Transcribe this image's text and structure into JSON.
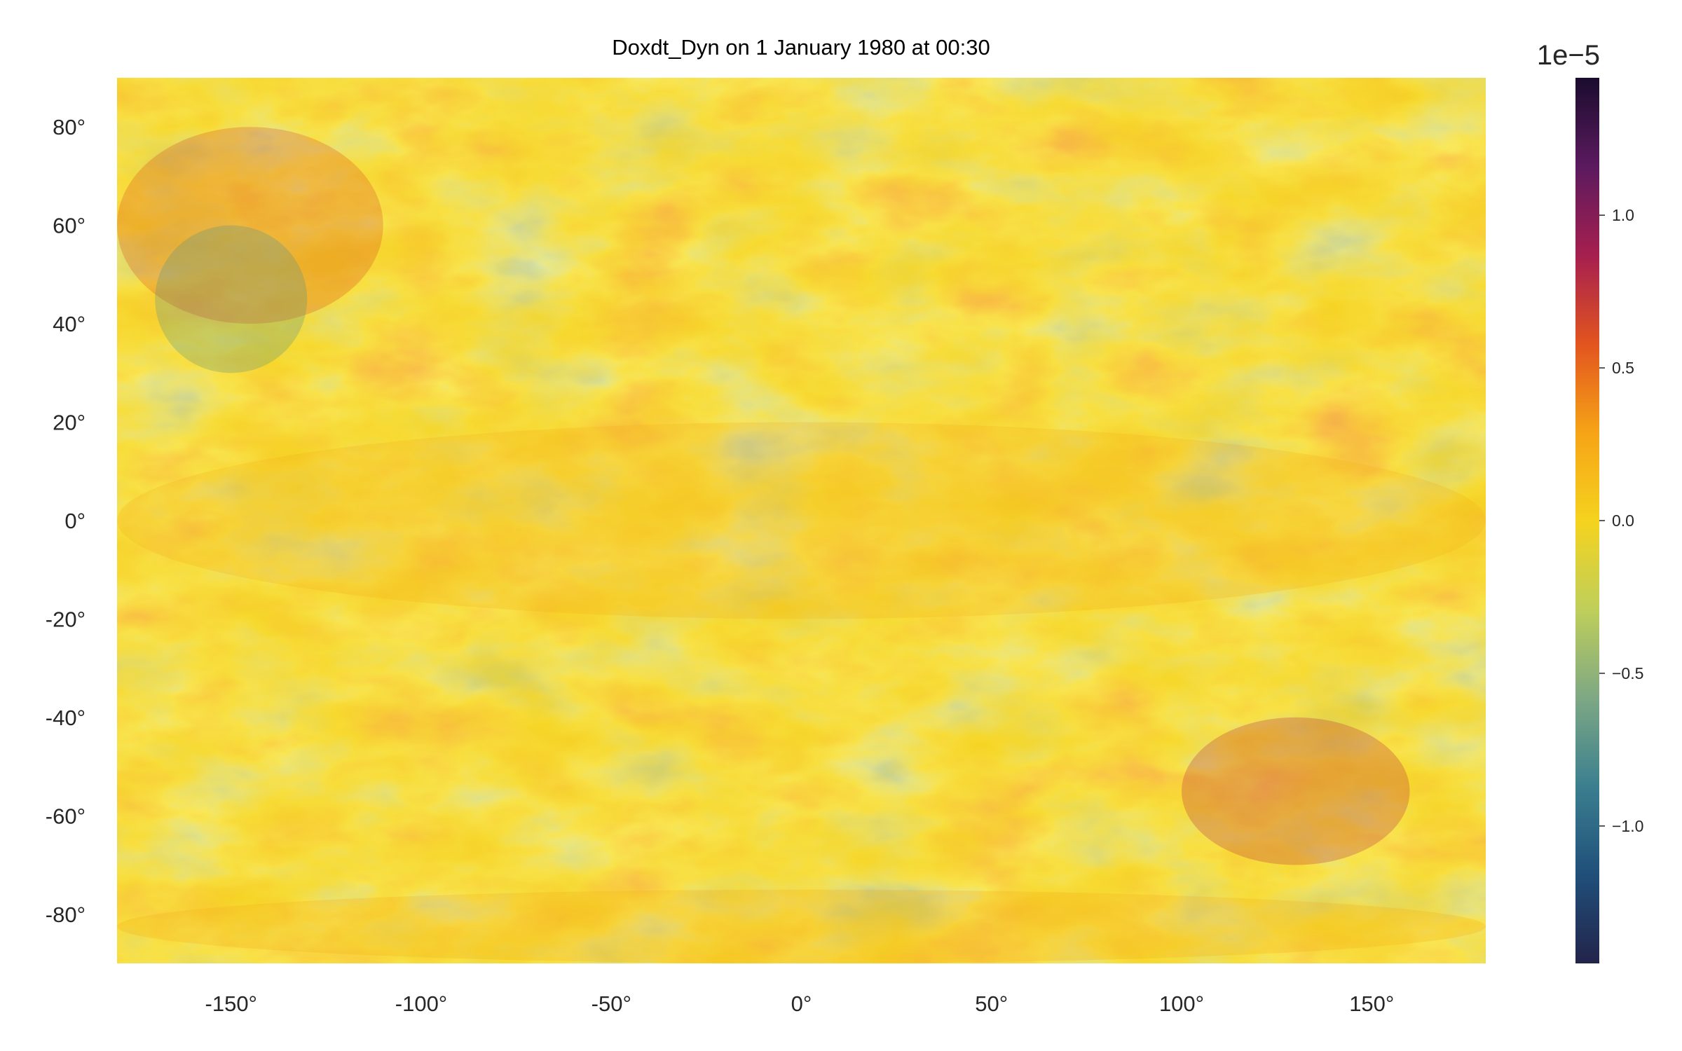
{
  "chart_data": {
    "type": "heatmap",
    "title": "Doxdt_Dyn on 1 January 1980 at 00:30",
    "xlabel": "",
    "ylabel": "",
    "xlim": [
      -180,
      180
    ],
    "ylim": [
      -90,
      90
    ],
    "x_ticks": [
      -150,
      -100,
      -50,
      0,
      50,
      100,
      150
    ],
    "x_tick_labels": [
      "-150°",
      "-100°",
      "-50°",
      "0°",
      "50°",
      "100°",
      "150°"
    ],
    "y_ticks": [
      80,
      60,
      40,
      20,
      0,
      -20,
      -40,
      -60,
      -80
    ],
    "y_tick_labels": [
      "80°",
      "60°",
      "40°",
      "20°",
      "0°",
      "-20°",
      "-40°",
      "-60°",
      "-80°"
    ],
    "grid": false,
    "colormap": [
      "#1a0c2e",
      "#5b1a5e",
      "#a51f4f",
      "#e2541f",
      "#f6a316",
      "#f5d31e",
      "#bfcf5a",
      "#7ea884",
      "#3b7f8f",
      "#204f7a",
      "#23244a"
    ],
    "colorbar": {
      "vmin": -1.45e-05,
      "vmax": 1.45e-05,
      "ticks": [
        1.0,
        0.5,
        0.0,
        -0.5,
        -1.0
      ],
      "tick_labels": [
        "1.0",
        "0.5",
        "0.0",
        "−0.5",
        "−1.0"
      ],
      "offset_label": "1e−5"
    },
    "field_description_regions": [
      {
        "lat": [
          40,
          80
        ],
        "lon": [
          -180,
          -110
        ],
        "tendency": "positive (orange/red streaks)"
      },
      {
        "lat": [
          30,
          60
        ],
        "lon": [
          -170,
          -130
        ],
        "tendency": "negative (teal)"
      },
      {
        "lat": [
          -20,
          20
        ],
        "lon": [
          -180,
          180
        ],
        "tendency": "mixed near zero (yellow/orange)"
      },
      {
        "lat": [
          -70,
          -40
        ],
        "lon": [
          100,
          160
        ],
        "tendency": "strong dipole (red and teal swirl)"
      },
      {
        "lat": [
          -90,
          -75
        ],
        "lon": [
          -180,
          180
        ],
        "tendency": "positive (yellow/orange)"
      }
    ]
  }
}
